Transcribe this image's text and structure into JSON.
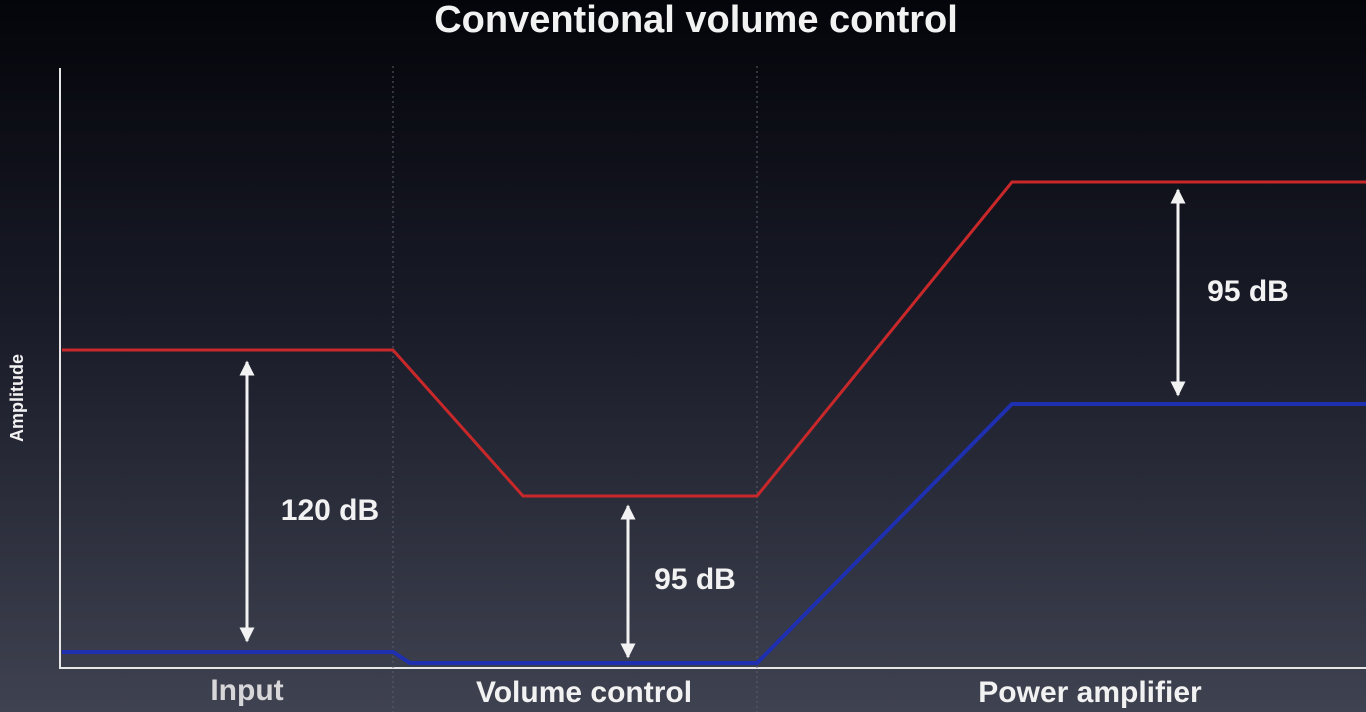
{
  "title": "Conventional volume control",
  "y_axis_label": "Amplitude",
  "stages": [
    "Input",
    "Volume control",
    "Power amplifier"
  ],
  "annotations": [
    "120 dB",
    "95 dB",
    "95 dB"
  ]
}
